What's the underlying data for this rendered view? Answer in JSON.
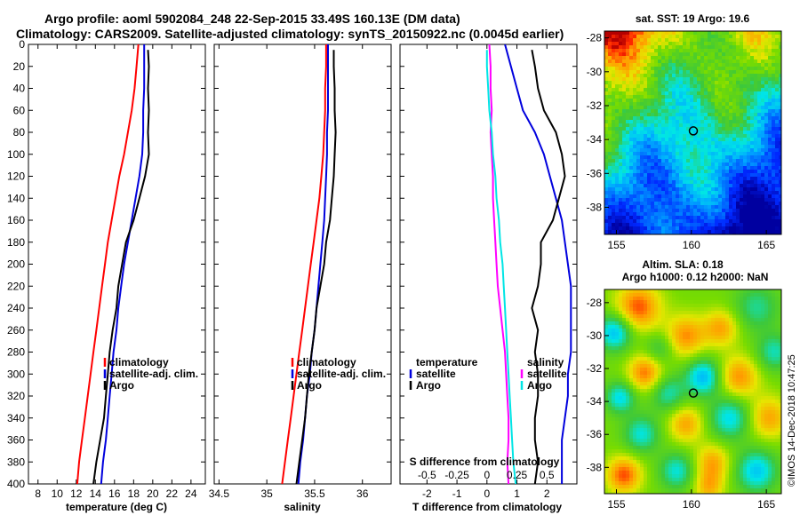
{
  "header": {
    "line1": "Argo profile: aoml 5902084_248 22-Sep-2015 33.49S 160.13E (DM data)",
    "line2": "Climatology: CARS2009. Satellite-adjusted climatology: synTS_20150922.nc (0.0045d earlier)"
  },
  "credit": "©IMOS 14-Dec-2018 10:47:25",
  "colors": {
    "climatology": "#ff0000",
    "satellite": "#0000dd",
    "argo": "#000000",
    "s_satellite": "#ff00ff",
    "s_argo": "#00e5e5"
  },
  "chart_data": [
    {
      "type": "line",
      "name": "temperature",
      "xlabel": "temperature (deg C)",
      "ylabel": "depth",
      "xlim": [
        7,
        25.5
      ],
      "ylim": [
        0,
        400
      ],
      "xticks": [
        8,
        10,
        12,
        14,
        16,
        18,
        20,
        22,
        24
      ],
      "yticks": [
        0,
        20,
        40,
        60,
        80,
        100,
        120,
        140,
        160,
        180,
        200,
        220,
        240,
        260,
        280,
        300,
        320,
        340,
        360,
        380,
        400
      ],
      "legend": [
        "climatology",
        "satellite-adj. clim.",
        "Argo"
      ],
      "series": [
        {
          "name": "climatology",
          "color": "#ff0000",
          "x": [
            18.5,
            18.3,
            18.1,
            17.8,
            17.4,
            17.0,
            16.5,
            16.1,
            15.7,
            15.3,
            15.0,
            14.7,
            14.4,
            14.1,
            13.8,
            13.5,
            13.2,
            12.9,
            12.6,
            12.3,
            12.1
          ],
          "y": [
            0,
            20,
            40,
            60,
            80,
            100,
            120,
            140,
            160,
            180,
            200,
            220,
            240,
            260,
            280,
            300,
            320,
            340,
            360,
            380,
            400
          ]
        },
        {
          "name": "satellite-adj. clim.",
          "color": "#0000dd",
          "x": [
            19.1,
            19.1,
            19.1,
            19.0,
            19.0,
            18.9,
            18.6,
            18.2,
            17.8,
            17.4,
            17.0,
            16.7,
            16.4,
            16.2,
            15.9,
            15.7,
            15.5,
            15.3,
            15.1,
            14.8,
            14.6
          ],
          "y": [
            0,
            20,
            40,
            60,
            80,
            100,
            120,
            140,
            160,
            180,
            200,
            220,
            240,
            260,
            280,
            300,
            320,
            340,
            360,
            380,
            400
          ]
        },
        {
          "name": "Argo",
          "color": "#000000",
          "x": [
            19.5,
            19.6,
            19.5,
            19.6,
            19.5,
            19.6,
            19.2,
            18.6,
            18.0,
            17.2,
            16.8,
            16.4,
            16.2,
            15.8,
            15.5,
            15.3,
            15.1,
            14.9,
            14.5,
            14.1,
            13.8
          ],
          "y": [
            5,
            20,
            40,
            60,
            80,
            100,
            120,
            140,
            160,
            180,
            200,
            220,
            240,
            260,
            280,
            300,
            320,
            340,
            360,
            380,
            400
          ]
        }
      ]
    },
    {
      "type": "line",
      "name": "salinity",
      "xlabel": "salinity",
      "xlim": [
        34.45,
        36.3
      ],
      "ylim": [
        0,
        400
      ],
      "xticks": [
        "34.5",
        "35",
        "35.5",
        "36"
      ],
      "legend": [
        "climatology",
        "satellite-adj. clim.",
        "Argo"
      ],
      "series": [
        {
          "name": "climatology",
          "color": "#ff0000",
          "x": [
            35.62,
            35.62,
            35.61,
            35.61,
            35.6,
            35.59,
            35.57,
            35.55,
            35.52,
            35.49,
            35.46,
            35.43,
            35.4,
            35.37,
            35.34,
            35.31,
            35.28,
            35.25,
            35.22,
            35.19,
            35.16
          ],
          "y": [
            0,
            20,
            40,
            60,
            80,
            100,
            120,
            140,
            160,
            180,
            200,
            220,
            240,
            260,
            280,
            300,
            320,
            340,
            360,
            380,
            400
          ]
        },
        {
          "name": "satellite-adj. clim.",
          "color": "#0000dd",
          "x": [
            35.64,
            35.64,
            35.64,
            35.64,
            35.63,
            35.63,
            35.62,
            35.61,
            35.6,
            35.58,
            35.56,
            35.54,
            35.52,
            35.5,
            35.47,
            35.45,
            35.42,
            35.4,
            35.38,
            35.35,
            35.33
          ],
          "y": [
            0,
            20,
            40,
            60,
            80,
            100,
            120,
            140,
            160,
            180,
            200,
            220,
            240,
            260,
            280,
            300,
            320,
            340,
            360,
            380,
            400
          ]
        },
        {
          "name": "Argo",
          "color": "#000000",
          "x": [
            35.7,
            35.7,
            35.71,
            35.71,
            35.72,
            35.71,
            35.7,
            35.68,
            35.66,
            35.62,
            35.6,
            35.56,
            35.52,
            35.5,
            35.47,
            35.44,
            35.42,
            35.4,
            35.37,
            35.34,
            35.31
          ],
          "y": [
            5,
            20,
            40,
            60,
            80,
            100,
            120,
            140,
            160,
            180,
            200,
            220,
            240,
            260,
            280,
            300,
            320,
            340,
            360,
            380,
            400
          ]
        }
      ]
    },
    {
      "type": "line",
      "name": "difference",
      "xlabel": "T difference from climatology",
      "xlabel_top": "S difference from climatology",
      "xlim": [
        -2.9,
        3.0
      ],
      "ylim": [
        0,
        400
      ],
      "xticks": [
        "-2",
        "-1",
        "0",
        "1",
        "2"
      ],
      "xticks_top": [
        "-0.5",
        "-0.25",
        "0",
        "0.25",
        "0.5"
      ],
      "legend_left": {
        "title": "temperature",
        "items": [
          "satellite",
          "Argo"
        ]
      },
      "legend_right": {
        "title": "salinity",
        "items": [
          "satellite",
          "Argo"
        ]
      },
      "series": [
        {
          "name": "T satellite",
          "color": "#0000dd",
          "x": [
            0.6,
            0.8,
            1.0,
            1.2,
            1.6,
            1.9,
            2.1,
            2.3,
            2.5,
            2.6,
            2.7,
            2.8,
            2.8,
            2.8,
            2.8,
            2.7,
            2.7,
            2.6,
            2.5,
            2.5,
            2.5
          ],
          "y": [
            0,
            20,
            40,
            60,
            80,
            100,
            120,
            140,
            160,
            180,
            200,
            220,
            240,
            260,
            280,
            300,
            320,
            340,
            360,
            380,
            400
          ]
        },
        {
          "name": "T Argo",
          "color": "#000000",
          "x": [
            1.5,
            1.6,
            1.7,
            1.9,
            2.3,
            2.5,
            2.6,
            2.4,
            2.2,
            1.8,
            1.8,
            1.7,
            1.5,
            1.7,
            1.6,
            1.7,
            1.7,
            1.6,
            1.6,
            1.7,
            1.6
          ],
          "y": [
            5,
            20,
            40,
            60,
            80,
            100,
            120,
            140,
            160,
            180,
            200,
            220,
            240,
            260,
            280,
            300,
            320,
            340,
            360,
            380,
            400
          ]
        },
        {
          "name": "S satellite",
          "color": "#ff00ff",
          "x": [
            0.02,
            0.03,
            0.03,
            0.04,
            0.03,
            0.04,
            0.05,
            0.05,
            0.06,
            0.07,
            0.08,
            0.09,
            0.11,
            0.13,
            0.15,
            0.16,
            0.17,
            0.18,
            0.18,
            0.17,
            0.18
          ],
          "y": [
            0,
            20,
            40,
            60,
            80,
            100,
            120,
            140,
            160,
            180,
            200,
            220,
            240,
            260,
            280,
            300,
            320,
            340,
            360,
            380,
            400
          ]
        },
        {
          "name": "S Argo",
          "color": "#00e5e5",
          "x": [
            0.0,
            0.0,
            0.01,
            0.02,
            0.04,
            0.05,
            0.07,
            0.08,
            0.1,
            0.11,
            0.13,
            0.14,
            0.15,
            0.16,
            0.17,
            0.18,
            0.19,
            0.2,
            0.21,
            0.22,
            0.24
          ],
          "y": [
            5,
            20,
            40,
            60,
            80,
            100,
            120,
            140,
            160,
            180,
            200,
            220,
            240,
            260,
            280,
            300,
            320,
            340,
            360,
            380,
            400
          ]
        }
      ]
    },
    {
      "type": "heatmap",
      "name": "sst-map",
      "title": "sat. SST: 19 Argo: 19.6",
      "xlim": [
        154.2,
        166
      ],
      "ylim": [
        -39.6,
        -27.6
      ],
      "xticks": [
        "155",
        "160",
        "165"
      ],
      "yticks": [
        "-28",
        "-30",
        "-32",
        "-34",
        "-36",
        "-38"
      ],
      "marker": {
        "lon": 160.13,
        "lat": -33.49
      }
    },
    {
      "type": "heatmap",
      "name": "sla-map",
      "title_line1": "Altim. SLA: 0.18",
      "title_line2": "Argo h1000: 0.12 h2000: NaN",
      "xlim": [
        154.2,
        166
      ],
      "ylim": [
        -39.6,
        -27.2
      ],
      "xticks": [
        "155",
        "160",
        "165"
      ],
      "yticks": [
        "-28",
        "-30",
        "-32",
        "-34",
        "-36",
        "-38"
      ],
      "marker": {
        "lon": 160.13,
        "lat": -33.49
      }
    }
  ]
}
